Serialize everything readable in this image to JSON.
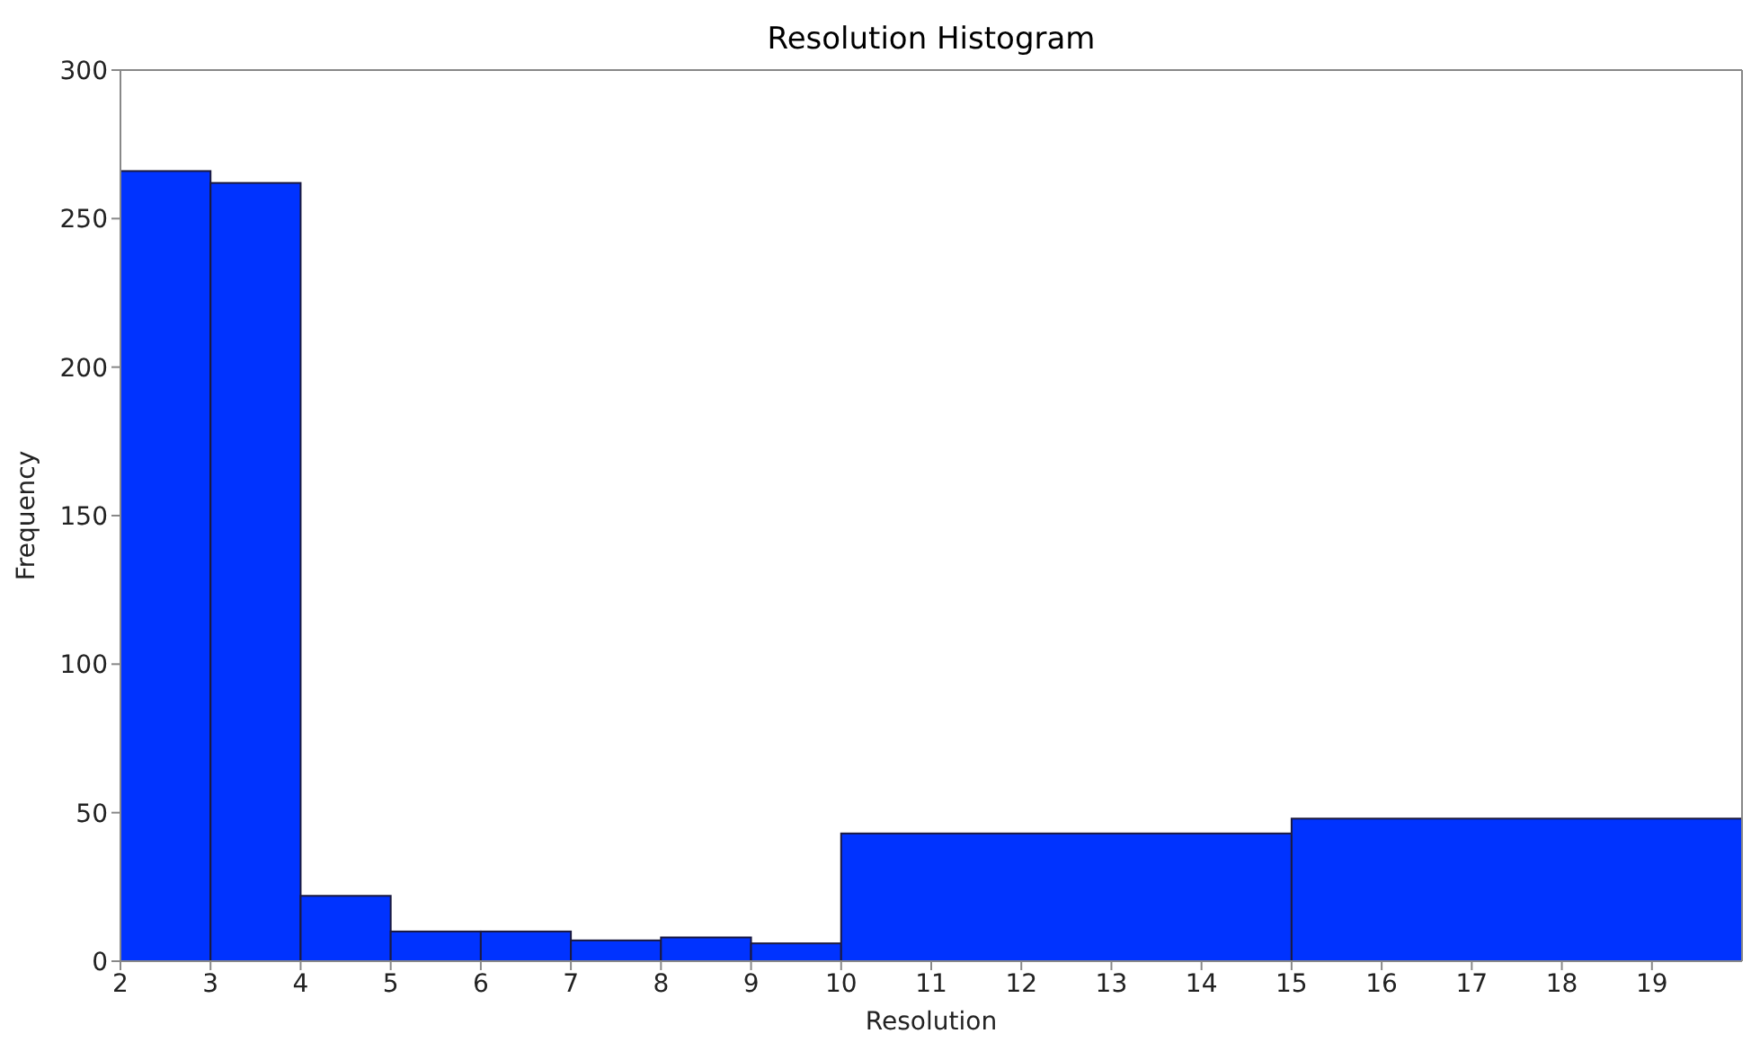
{
  "chart_data": {
    "type": "histogram",
    "title": "Resolution Histogram",
    "xlabel": "Resolution",
    "ylabel": "Frequency",
    "bins": [
      2,
      3,
      4,
      5,
      6,
      7,
      8,
      9,
      10,
      15,
      20
    ],
    "values": [
      266,
      262,
      22,
      10,
      10,
      7,
      8,
      6,
      43,
      48
    ],
    "color": "#0033ff",
    "xlim": [
      2,
      20
    ],
    "xticks": [
      2,
      3,
      4,
      5,
      6,
      7,
      8,
      9,
      10,
      11,
      12,
      13,
      14,
      15,
      16,
      17,
      18,
      19
    ],
    "ylim": [
      0,
      300
    ],
    "yticks": [
      0,
      50,
      100,
      150,
      200,
      250,
      300
    ],
    "grid": false
  }
}
